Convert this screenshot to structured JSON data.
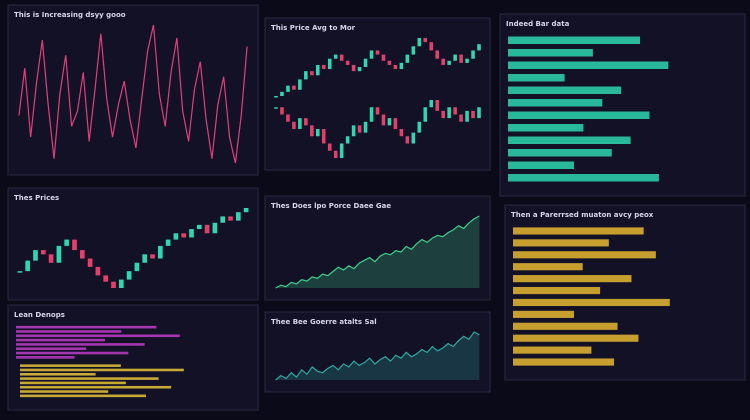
{
  "panels": [
    {
      "title": "This is Increasing dsyy gooo",
      "charts": [
        {
          "type": "line",
          "color": "#e0407a",
          "values": [
            50,
            72,
            40,
            65,
            85,
            55,
            30,
            60,
            78,
            45,
            52,
            70,
            38,
            62,
            88,
            58,
            40,
            55,
            66,
            48,
            35,
            58,
            80,
            92,
            60,
            45,
            70,
            86,
            52,
            38,
            62,
            75,
            48,
            30,
            55,
            68,
            40,
            28,
            50,
            82
          ]
        }
      ]
    },
    {
      "title": "This Price Avg to Mor",
      "charts": [
        {
          "type": "candle",
          "values": [
            40,
            42,
            45,
            43,
            48,
            52,
            50,
            55,
            53,
            58,
            60,
            57,
            55,
            52,
            54,
            58,
            62,
            60,
            57,
            55,
            53,
            56,
            60,
            64,
            68,
            66,
            62,
            58,
            55,
            57,
            60,
            56,
            58,
            62,
            65
          ]
        },
        {
          "type": "candle",
          "values": [
            50,
            48,
            46,
            44,
            47,
            45,
            42,
            44,
            40,
            38,
            36,
            40,
            42,
            45,
            43,
            46,
            50,
            48,
            45,
            47,
            44,
            42,
            40,
            43,
            46,
            50,
            52,
            49,
            47,
            50,
            48,
            46,
            49,
            47,
            50
          ]
        }
      ]
    },
    {
      "title": "Indeed Bar data",
      "charts": [
        {
          "type": "hbar",
          "color": "#2fd6b0",
          "values": [
            70,
            45,
            85,
            30,
            60,
            50,
            75,
            40,
            65,
            55,
            35,
            80
          ]
        }
      ]
    },
    {
      "title": "Thes Prices",
      "charts": [
        {
          "type": "candle",
          "values": [
            40,
            45,
            50,
            48,
            44,
            52,
            55,
            50,
            46,
            42,
            38,
            35,
            32,
            36,
            40,
            44,
            48,
            46,
            52,
            55,
            58,
            56,
            60,
            62,
            58,
            63,
            66,
            64,
            68,
            70
          ]
        }
      ]
    },
    {
      "title": "Thes Does lpo Porce Daee Gae",
      "charts": [
        {
          "type": "area",
          "color": "#3fd08a",
          "values": [
            20,
            22,
            21,
            24,
            23,
            26,
            25,
            28,
            27,
            30,
            29,
            32,
            35,
            33,
            36,
            34,
            38,
            40,
            42,
            39,
            43,
            45,
            44,
            47,
            46,
            50,
            48,
            52,
            55,
            53,
            56,
            58,
            57,
            60,
            62,
            65,
            63,
            67,
            70,
            72
          ]
        }
      ]
    },
    {
      "title": "Lean Denops",
      "charts": [
        {
          "type": "hbar",
          "color": "#c13cc9",
          "values": [
            60,
            45,
            70,
            38,
            55,
            30,
            48,
            25
          ]
        },
        {
          "type": "hbar",
          "color": "#e8c43a",
          "values": [
            40,
            65,
            30,
            55,
            42,
            60,
            35,
            50
          ]
        }
      ]
    },
    {
      "title": "Thee Bee Goerre atalts Sal",
      "charts": [
        {
          "type": "area",
          "color": "#2fa8a0",
          "values": [
            15,
            18,
            16,
            20,
            17,
            22,
            19,
            24,
            21,
            20,
            23,
            25,
            22,
            26,
            24,
            28,
            25,
            27,
            30,
            26,
            29,
            31,
            28,
            32,
            30,
            34,
            31,
            33,
            36,
            34,
            38,
            35,
            37,
            40,
            38,
            42,
            45,
            43,
            48,
            46
          ]
        }
      ]
    },
    {
      "title": "Then a Parerrsed muaton avcy peox",
      "charts": [
        {
          "type": "hbar",
          "color": "#e8b830",
          "values": [
            75,
            55,
            82,
            40,
            68,
            50,
            90,
            35,
            60,
            72,
            45,
            58
          ]
        }
      ]
    }
  ]
}
